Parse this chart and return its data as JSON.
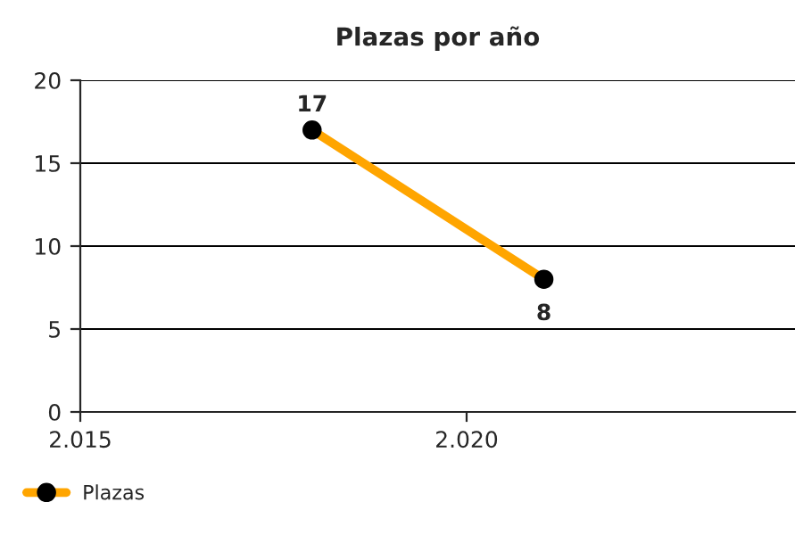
{
  "chart_data": {
    "type": "line",
    "title": "Plazas por año",
    "x": [
      2018,
      2021
    ],
    "series": [
      {
        "name": "Plazas",
        "color": "#ffa500",
        "values": [
          17,
          8
        ]
      }
    ],
    "xlim": [
      2015,
      2024.25
    ],
    "xticks": [
      {
        "value": 2015,
        "label": "2.015"
      },
      {
        "value": 2020,
        "label": "2.020"
      }
    ],
    "ylim": [
      0,
      20
    ],
    "yticks": [
      0,
      5,
      10,
      15,
      20
    ],
    "grid": "y",
    "legend": "bottom left",
    "marker": "circle",
    "line_style": "solid",
    "data_labels": true
  }
}
